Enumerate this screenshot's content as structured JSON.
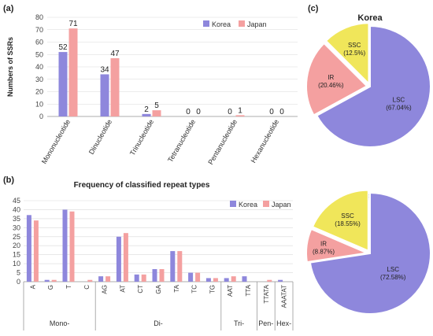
{
  "panels": {
    "a": "(a)",
    "b": "(b)",
    "c": "(c)"
  },
  "colors": {
    "korea": "#8e87dc",
    "japan": "#f4a0a0",
    "lsc": "#8e87dc",
    "ir": "#f4a0a0",
    "ssc": "#f0e65a"
  },
  "chart_data": [
    {
      "type": "bar",
      "panel": "(a)",
      "title": "",
      "ylabel": "Numbers of SSRs",
      "xlabel": "",
      "ylim": [
        0,
        80
      ],
      "yticks": [
        0,
        10,
        20,
        30,
        40,
        50,
        60,
        70,
        80
      ],
      "legend": "top-right",
      "categories": [
        "Mononucleotide",
        "Dinucleotide",
        "Trinucleotide",
        "Tetranucleotide",
        "Pentanucleotide",
        "Hexanucleotide"
      ],
      "series": [
        {
          "name": "Korea",
          "values": [
            52,
            34,
            2,
            0,
            0,
            0
          ],
          "labels": [
            "52",
            "34",
            "2",
            "0",
            "0",
            "0"
          ]
        },
        {
          "name": "Japan",
          "values": [
            71,
            47,
            5,
            0,
            1,
            0
          ],
          "labels": [
            "71",
            "47",
            "5",
            "0",
            "1",
            "0"
          ]
        }
      ]
    },
    {
      "type": "bar",
      "panel": "(b)",
      "title": "Frequency of classified repeat types",
      "ylabel": "",
      "xlabel": "",
      "ylim": [
        0,
        45
      ],
      "yticks": [
        0,
        5,
        10,
        15,
        20,
        25,
        30,
        35,
        40,
        45
      ],
      "legend": "top-right",
      "categories": [
        "A",
        "G",
        "T",
        "C",
        "AG",
        "AT",
        "CT",
        "GA",
        "TA",
        "TC",
        "TG",
        "AAT",
        "TTA",
        "TTATA",
        "AAATAT"
      ],
      "groups": [
        {
          "label": "Mono-",
          "count": 4
        },
        {
          "label": "Di-",
          "count": 7
        },
        {
          "label": "Tri-",
          "count": 2
        },
        {
          "label": "Pen-",
          "count": 1
        },
        {
          "label": "Hex-",
          "count": 1
        }
      ],
      "series": [
        {
          "name": "Korea",
          "values": [
            37,
            1,
            40,
            0,
            3,
            25,
            4,
            7,
            17,
            5,
            2,
            2,
            3,
            0,
            1
          ]
        },
        {
          "name": "Japan",
          "values": [
            34,
            1,
            39,
            1,
            3,
            27,
            4,
            7,
            17,
            5,
            2,
            3,
            0,
            1,
            0
          ]
        }
      ]
    },
    {
      "type": "pie",
      "panel": "(c)",
      "title": "Korea",
      "slices": [
        {
          "name": "LSC",
          "value": 67.04,
          "label": "LSC",
          "pct": "(67.04%)"
        },
        {
          "name": "IR",
          "value": 20.46,
          "label": "IR",
          "pct": "(20.46%)"
        },
        {
          "name": "SSC",
          "value": 12.5,
          "label": "SSC",
          "pct": "(12.5%)"
        }
      ]
    },
    {
      "type": "pie",
      "panel": "(c)",
      "title": "Japan",
      "slices": [
        {
          "name": "LSC",
          "value": 72.58,
          "label": "LSC",
          "pct": "(72.58%)"
        },
        {
          "name": "IR",
          "value": 8.87,
          "label": "IR",
          "pct": "(8.87%)"
        },
        {
          "name": "SSC",
          "value": 18.55,
          "label": "SSC",
          "pct": "(18.55%)"
        }
      ]
    }
  ]
}
